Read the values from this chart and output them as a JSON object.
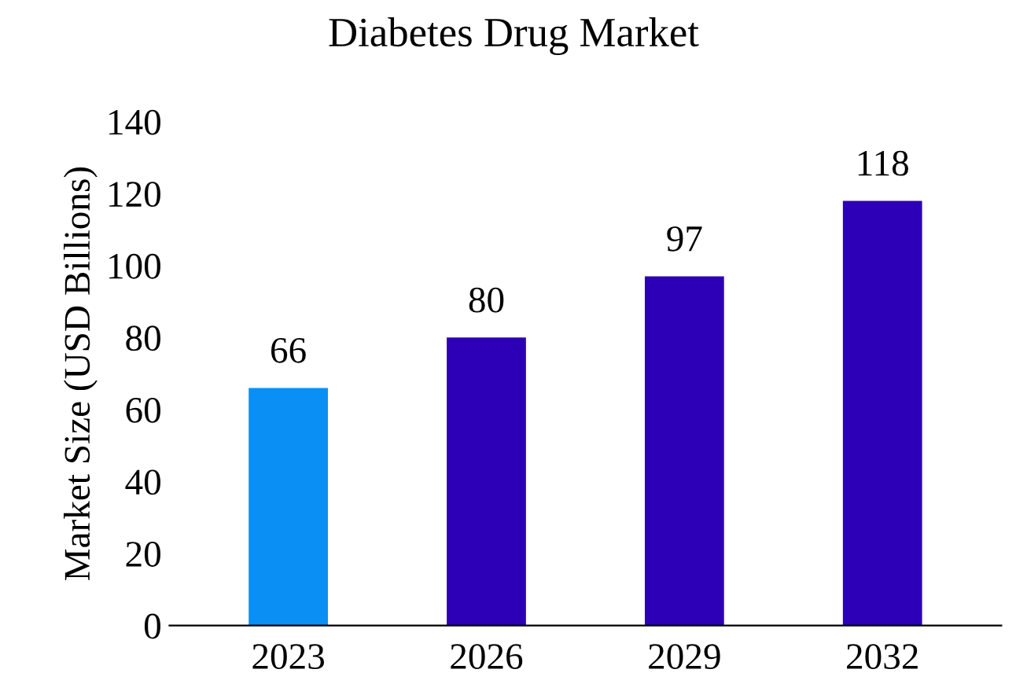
{
  "chart_data": {
    "type": "bar",
    "title": "Diabetes Drug Market",
    "ylabel": "Market Size (USD Billions)",
    "categories": [
      "2023",
      "2026",
      "2029",
      "2032"
    ],
    "values": [
      66,
      80,
      97,
      118
    ],
    "colors": [
      "#0a8ff5",
      "#2d00b8",
      "#2d00b8",
      "#2d00b8"
    ],
    "ylim": [
      0,
      140
    ],
    "yticks": [
      0,
      20,
      40,
      60,
      80,
      100,
      120,
      140
    ],
    "data_labels": true,
    "grid": false,
    "legend": false
  }
}
